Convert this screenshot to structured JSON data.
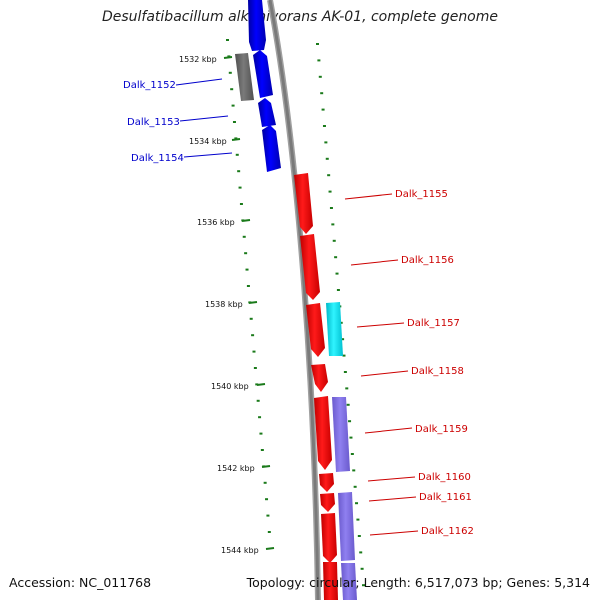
{
  "title": "Desulfatibacillum alkenivorans AK-01, complete genome",
  "footer": {
    "accession": "Accession: NC_011768",
    "topology": "Topology: circular; Length: 6,517,073 bp; Genes: 5,314"
  },
  "colors": {
    "forward_gene": "#0000ff",
    "reverse_gene": "#ff0000",
    "gray_gene": "#707070",
    "cyan_gene": "#00e6f0",
    "purple_gene": "#7b68ee",
    "backbone": "#808080",
    "tick": "#1a7a1a"
  },
  "kbp_ticks": [
    "1532 kbp",
    "1534 kbp",
    "1536 kbp",
    "1538 kbp",
    "1540 kbp",
    "1542 kbp",
    "1544 kbp"
  ],
  "genes_left": [
    {
      "label": "Dalk_1152",
      "color": "#0000cc"
    },
    {
      "label": "Dalk_1153",
      "color": "#0000cc"
    },
    {
      "label": "Dalk_1154",
      "color": "#0000cc"
    }
  ],
  "genes_right": [
    {
      "label": "Dalk_1155",
      "color": "#cc0000"
    },
    {
      "label": "Dalk_1156",
      "color": "#cc0000"
    },
    {
      "label": "Dalk_1157",
      "color": "#cc0000"
    },
    {
      "label": "Dalk_1158",
      "color": "#cc0000"
    },
    {
      "label": "Dalk_1159",
      "color": "#cc0000"
    },
    {
      "label": "Dalk_1160",
      "color": "#cc0000"
    },
    {
      "label": "Dalk_1161",
      "color": "#cc0000"
    },
    {
      "label": "Dalk_1162",
      "color": "#cc0000"
    }
  ]
}
